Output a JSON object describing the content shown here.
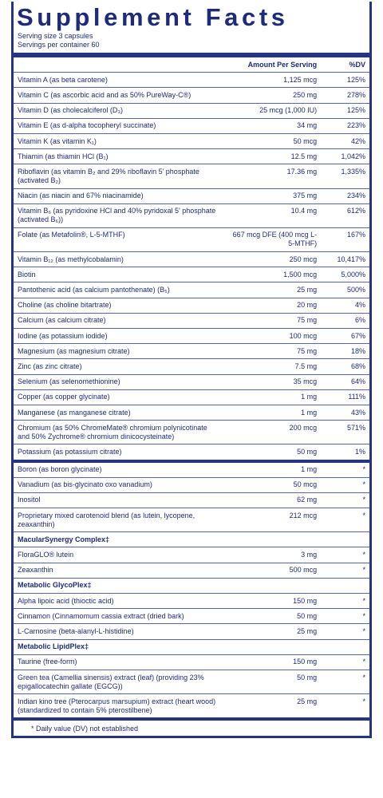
{
  "title": "Supplement Facts",
  "serving_size": "Serving size 3 capsules",
  "servings_per_container": "Servings per container 60",
  "header": {
    "amount": "Amount Per Serving",
    "dv": "%DV"
  },
  "groups": [
    {
      "rows": [
        [
          "Vitamin A (as beta carotene)",
          "1,125 mcg",
          "125%"
        ],
        [
          "Vitamin C (as ascorbic acid and as 50% PureWay-C®)",
          "250 mg",
          "278%"
        ],
        [
          "Vitamin D (as cholecalciferol (D₃)",
          "25 mcg (1,000 IU)",
          "125%"
        ],
        [
          "Vitamin E (as d-alpha tocopheryl succinate)",
          "34 mg",
          "223%"
        ],
        [
          "Vitamin K (as vitamin K₁)",
          "50 mcg",
          "42%"
        ],
        [
          "Thiamin (as thiamin HCl (B₁)",
          "12.5 mg",
          "1,042%"
        ],
        [
          "Riboflavin (as vitamin B₂ and 29% riboflavin 5' phosphate (activated B₂)",
          "17.36 mg",
          "1,335%"
        ],
        [
          "Niacin (as niacin and 67% niacinamide)",
          "375 mg",
          "234%"
        ],
        [
          "Vitamin B₆ (as pyridoxine HCl and 40% pyridoxal 5' phosphate (activated B₆))",
          "10.4 mg",
          "612%"
        ],
        [
          "Folate (as Metafolin®, L-5-MTHF)",
          "667 mcg DFE (400 mcg L-5-MTHF)",
          "167%"
        ],
        [
          "Vitamin B₁₂ (as methylcobalamin)",
          "250 mcg",
          "10,417%"
        ],
        [
          "Biotin",
          "1,500 mcg",
          "5,000%"
        ],
        [
          "Pantothenic acid (as calcium pantothenate) (B₅)",
          "25 mg",
          "500%"
        ],
        [
          "Choline (as choline bitartrate)",
          "20 mg",
          "4%"
        ],
        [
          "Calcium (as calcium citrate)",
          "75 mg",
          "6%"
        ],
        [
          "Iodine (as potassium iodide)",
          "100 mcg",
          "67%"
        ],
        [
          "Magnesium (as magnesium citrate)",
          "75 mg",
          "18%"
        ],
        [
          "Zinc (as zinc citrate)",
          "7.5 mg",
          "68%"
        ],
        [
          "Selenium (as selenomethionine)",
          "35 mcg",
          "64%"
        ],
        [
          "Copper (as copper glycinate)",
          "1 mg",
          "111%"
        ],
        [
          "Manganese (as manganese citrate)",
          "1 mg",
          "43%"
        ],
        [
          "Chromium (as 50% ChromeMate® chromium polynicotinate and 50% Zychrome® chromium dinicocysteinate)",
          "200 mcg",
          "571%"
        ],
        [
          "Potassium (as potassium citrate)",
          "50 mg",
          "1%"
        ]
      ]
    },
    {
      "rows": [
        [
          "Boron (as boron glycinate)",
          "1 mg",
          "*"
        ],
        [
          "Vanadium (as bis-glycinato oxo vanadium)",
          "50 mcg",
          "*"
        ],
        [
          "Inositol",
          "62 mg",
          "*"
        ],
        [
          "Proprietary mixed carotenoid blend (as lutein, lycopene, zeaxanthin)",
          "212 mcg",
          "*"
        ]
      ]
    },
    {
      "heading": "MacularSynergy Complex‡",
      "rows": [
        [
          "FloraGLO® lutein",
          "3 mg",
          "*"
        ],
        [
          "Zeaxanthin",
          "500 mcg",
          "*"
        ]
      ]
    },
    {
      "heading": "Metabolic GlycoPlex‡",
      "rows": [
        [
          "Alpha lipoic acid (thioctic acid)",
          "150 mg",
          "*"
        ],
        [
          "Cinnamon (Cinnamomum cassia extract (dried bark)",
          "50 mg",
          "*"
        ],
        [
          "L-Carnosine (beta-alanyl-L-histidine)",
          "25 mg",
          "*"
        ]
      ]
    },
    {
      "heading": "Metabolic LipidPlex‡",
      "rows": [
        [
          "Taurine (free-form)",
          "150 mg",
          "*"
        ],
        [
          "Green tea (Camellia sinensis) extract (leaf) (providing 23% epigallocatechin gallate (EGCG))",
          "50 mg",
          "*"
        ],
        [
          "Indian kino tree (Pterocarpus marsupium) extract (heart wood) (standardized to contain 5% pterostilbene)",
          "25 mg",
          "*"
        ]
      ]
    }
  ],
  "footnote": "* Daily value (DV) not established"
}
